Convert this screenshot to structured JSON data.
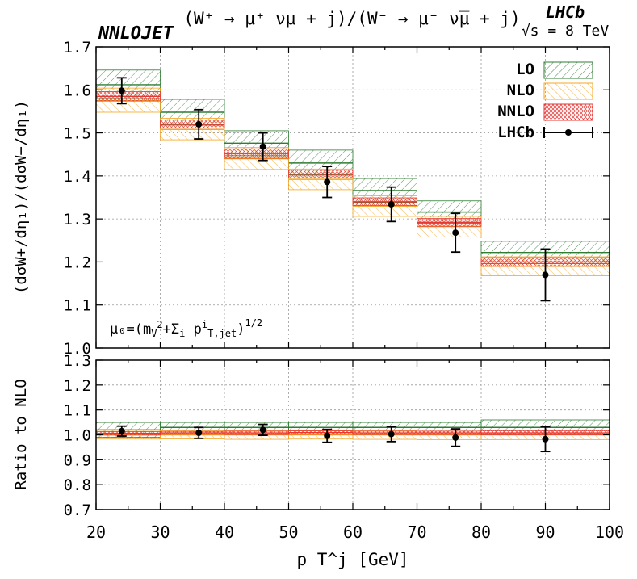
{
  "header": {
    "brand": "NNLOJET",
    "title": "(W⁺ → μ⁺ νμ + j)/(W⁻ → μ⁻ ν̅μ + j)",
    "experiment": "LHCb",
    "energy": "√s = 8 TeV"
  },
  "annotation": {
    "scale_prefix": "μ₀=(m",
    "scale_sub_v": "V",
    "scale_sup_2": "2",
    "scale_mid": "+Σ",
    "scale_sub_i": "i",
    "scale_p": " p",
    "scale_sup_i": "i",
    "scale_sub_tjet": "T,jet",
    "scale_close": ")",
    "scale_pow": "1/2"
  },
  "legend": [
    {
      "label": "LO",
      "color": "#2e7d32"
    },
    {
      "label": "NLO",
      "color": "#f5a623"
    },
    {
      "label": "NNLO",
      "color": "#e53935"
    },
    {
      "label": "LHCb",
      "color": "#000000"
    }
  ],
  "chart_data": [
    {
      "type": "bar",
      "panel": "main",
      "title": "(W⁺ → μ⁺ νμ + j)/(W⁻ → μ⁻ ν̅μ + j)",
      "xlabel": "p_T^j [GeV]",
      "ylabel": "(dσW+/dη₁)/(dσW−/dη₁)",
      "xlim": [
        20,
        100
      ],
      "ylim": [
        1.0,
        1.7
      ],
      "xticks": [
        20,
        25,
        30,
        35,
        40,
        45,
        50,
        55,
        60,
        65,
        70,
        75,
        80,
        85,
        90,
        95,
        100
      ],
      "xtick_labels": [
        "20",
        "",
        "30",
        "",
        "40",
        "",
        "50",
        "",
        "60",
        "",
        "70",
        "",
        "80",
        "",
        "90",
        "",
        "100"
      ],
      "yticks": [
        1.0,
        1.1,
        1.2,
        1.3,
        1.4,
        1.5,
        1.6,
        1.7
      ],
      "grid": true,
      "bin_edges": [
        20,
        30,
        40,
        50,
        60,
        70,
        80,
        100
      ],
      "series": [
        {
          "name": "LO",
          "center": [
            1.612,
            1.548,
            1.476,
            1.43,
            1.366,
            1.316,
            1.222
          ],
          "low": [
            1.58,
            1.518,
            1.447,
            1.402,
            1.338,
            1.29,
            1.196
          ],
          "high": [
            1.646,
            1.578,
            1.505,
            1.46,
            1.394,
            1.342,
            1.248
          ]
        },
        {
          "name": "NLO",
          "center": [
            1.575,
            1.508,
            1.44,
            1.392,
            1.33,
            1.282,
            1.19
          ],
          "low": [
            1.548,
            1.484,
            1.415,
            1.368,
            1.306,
            1.258,
            1.168
          ],
          "high": [
            1.604,
            1.534,
            1.466,
            1.416,
            1.354,
            1.306,
            1.212
          ]
        },
        {
          "name": "NNLO",
          "center": [
            1.585,
            1.52,
            1.452,
            1.404,
            1.34,
            1.292,
            1.2
          ],
          "low": [
            1.574,
            1.511,
            1.441,
            1.395,
            1.331,
            1.283,
            1.19
          ],
          "high": [
            1.596,
            1.53,
            1.463,
            1.414,
            1.349,
            1.301,
            1.21
          ]
        },
        {
          "name": "LHCb",
          "x": [
            24,
            36,
            46,
            56,
            66,
            76,
            90
          ],
          "y": [
            1.598,
            1.52,
            1.468,
            1.386,
            1.334,
            1.268,
            1.17
          ],
          "yerr": [
            0.03,
            0.034,
            0.032,
            0.036,
            0.04,
            0.045,
            0.06
          ]
        }
      ]
    },
    {
      "type": "bar",
      "panel": "ratio",
      "xlabel": "p_T^j [GeV]",
      "ylabel": "Ratio to NLO",
      "xlim": [
        20,
        100
      ],
      "ylim": [
        0.7,
        1.3
      ],
      "yticks": [
        0.7,
        0.8,
        0.9,
        1.0,
        1.1,
        1.2,
        1.3
      ],
      "grid": true,
      "bin_edges": [
        20,
        30,
        40,
        50,
        60,
        70,
        80,
        100
      ],
      "series": [
        {
          "name": "LO",
          "center": [
            1.02,
            1.03,
            1.03,
            1.03,
            1.03,
            1.03,
            1.03
          ],
          "low": [
            0.99,
            1.0,
            1.0,
            1.0,
            1.0,
            1.0,
            1.0
          ],
          "high": [
            1.05,
            1.05,
            1.05,
            1.05,
            1.05,
            1.05,
            1.06
          ]
        },
        {
          "name": "NLO",
          "center": [
            1.0,
            1.0,
            1.0,
            1.0,
            1.0,
            1.0,
            1.0
          ],
          "low": [
            0.983,
            0.984,
            0.982,
            0.983,
            0.982,
            0.981,
            0.981
          ],
          "high": [
            1.018,
            1.017,
            1.018,
            1.017,
            1.018,
            1.019,
            1.019
          ]
        },
        {
          "name": "NNLO",
          "center": [
            1.006,
            1.008,
            1.008,
            1.009,
            1.008,
            1.008,
            1.008
          ],
          "low": [
            0.999,
            1.002,
            1.001,
            1.002,
            1.001,
            1.001,
            1.0
          ],
          "high": [
            1.013,
            1.014,
            1.015,
            1.016,
            1.015,
            1.015,
            1.017
          ]
        },
        {
          "name": "LHCb",
          "x": [
            24,
            36,
            46,
            56,
            66,
            76,
            90
          ],
          "y": [
            1.015,
            1.008,
            1.02,
            0.996,
            1.003,
            0.989,
            0.983
          ],
          "yerr": [
            0.02,
            0.022,
            0.022,
            0.026,
            0.03,
            0.035,
            0.05
          ]
        }
      ]
    }
  ]
}
